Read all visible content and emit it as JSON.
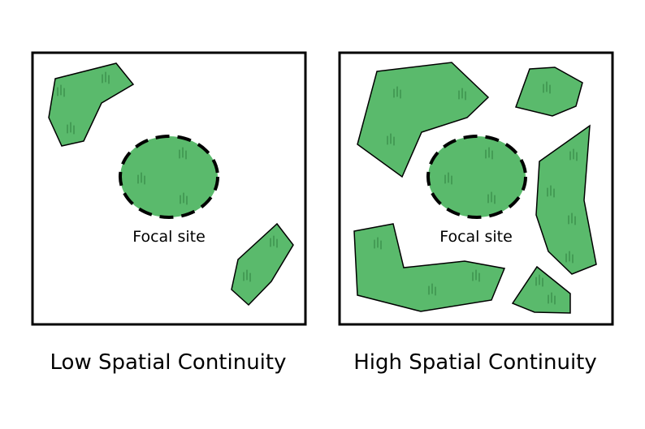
{
  "panels": [
    {
      "id": "low",
      "title": "Low Spatial Continuity",
      "focal_label": "Focal site"
    },
    {
      "id": "high",
      "title": "High Spatial Continuity",
      "focal_label": "Focal site"
    }
  ],
  "colors": {
    "habitat_fill": "#5aba6c",
    "outline": "#000000",
    "background": "#ffffff"
  }
}
